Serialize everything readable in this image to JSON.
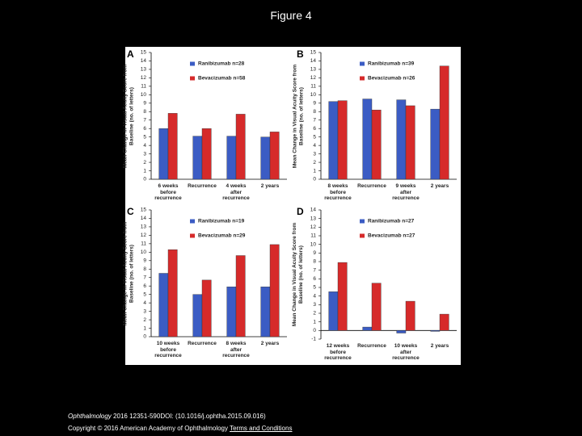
{
  "title": "Figure 4",
  "footer": {
    "journal": "Ophthalmology",
    "citation": "2016 12351-590DOI: (10.1016/j.ophtha.2015.09.016)",
    "copyright": "Copyright © 2016 American Academy of Ophthalmology",
    "link": "Terms and Conditions"
  },
  "chart_data": [
    {
      "type": "bar",
      "panel": "A",
      "ylabel": "Mean Change in Visual Acuity Score from\nBaseline (no. of letters)",
      "categories": [
        "6 weeks\nbefore\nrecurrence",
        "Recurrence",
        "4 weeks\nafter\nrecurrence",
        "2 years"
      ],
      "series": [
        {
          "name": "Ranibizumab n=28",
          "color": "#3b5cc4",
          "values": [
            6.0,
            5.1,
            5.1,
            5.0
          ]
        },
        {
          "name": "Bevacizumab n=58",
          "color": "#d62a2a",
          "values": [
            7.8,
            6.0,
            7.7,
            5.6
          ]
        }
      ],
      "ylim": [
        0,
        15
      ],
      "yticks": [
        0,
        1,
        2,
        3,
        4,
        5,
        6,
        7,
        8,
        9,
        10,
        11,
        12,
        13,
        14,
        15
      ]
    },
    {
      "type": "bar",
      "panel": "B",
      "ylabel": "Mean Change in Visual Acuity Score from\nBaseline (no. of letters)",
      "categories": [
        "8 weeks\nbefore\nrecurrence",
        "Recurrence",
        "9 weeks\nafter\nrecurrence",
        "2 years"
      ],
      "series": [
        {
          "name": "Ranibizumab n=39",
          "color": "#3b5cc4",
          "values": [
            9.2,
            9.5,
            9.4,
            8.3
          ]
        },
        {
          "name": "Bevacizumab n=26",
          "color": "#d62a2a",
          "values": [
            9.3,
            8.2,
            8.7,
            13.4
          ]
        }
      ],
      "ylim": [
        0,
        15
      ],
      "yticks": [
        0,
        1,
        2,
        3,
        4,
        5,
        6,
        7,
        8,
        9,
        10,
        11,
        12,
        13,
        14,
        15
      ]
    },
    {
      "type": "bar",
      "panel": "C",
      "ylabel": "Mean Change in Visual Acuity Score from\nBaseline (no. of letters)",
      "categories": [
        "10 weeks\nbefore\nrecurrence",
        "Recurrence",
        "8 weeks\nafter\nrecurrence",
        "2 years"
      ],
      "series": [
        {
          "name": "Ranibizumab n=19",
          "color": "#3b5cc4",
          "values": [
            7.5,
            5.0,
            5.9,
            5.9
          ]
        },
        {
          "name": "Bevacizumab n=29",
          "color": "#d62a2a",
          "values": [
            10.3,
            6.7,
            9.6,
            10.9
          ]
        }
      ],
      "ylim": [
        0,
        15
      ],
      "yticks": [
        0,
        1,
        2,
        3,
        4,
        5,
        6,
        7,
        8,
        9,
        10,
        11,
        12,
        13,
        14,
        15
      ]
    },
    {
      "type": "bar",
      "panel": "D",
      "ylabel": "Mean Change in Visual Acuity Score from\nBaseline (no. of letters)",
      "categories": [
        "12 weeks\nbefore\nrecurrence",
        "Recurrence",
        "10 weeks\nafter\nrecurrence",
        "2 years"
      ],
      "series": [
        {
          "name": "Ranibizumab n=27",
          "color": "#3b5cc4",
          "values": [
            4.5,
            0.4,
            -0.3,
            -0.1
          ]
        },
        {
          "name": "Bevacizumab n=27",
          "color": "#d62a2a",
          "values": [
            7.9,
            5.5,
            3.4,
            1.9
          ]
        }
      ],
      "ylim": [
        -1,
        14
      ],
      "yticks": [
        -1,
        0,
        1,
        2,
        3,
        4,
        5,
        6,
        7,
        8,
        9,
        10,
        11,
        12,
        13,
        14
      ]
    }
  ]
}
